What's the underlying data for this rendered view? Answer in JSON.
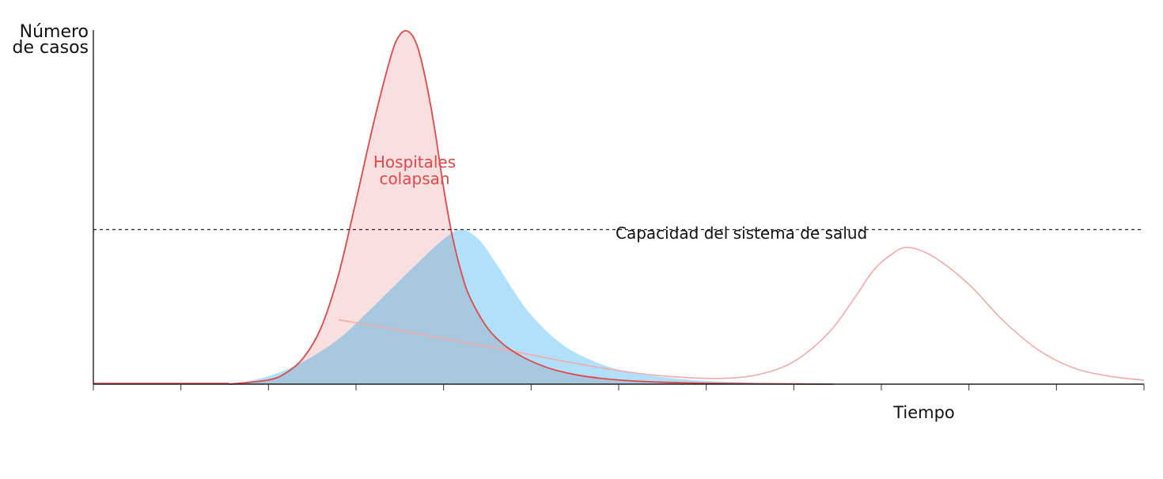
{
  "chart_data": {
    "type": "area",
    "xlabel": "Tiempo",
    "ylabel_lines": [
      "Número",
      "de casos"
    ],
    "xlim": [
      0,
      12
    ],
    "ylim": [
      0,
      11
    ],
    "x_ticks": [
      0,
      1,
      2,
      3,
      4,
      5,
      6,
      7,
      8,
      9,
      10,
      11,
      12
    ],
    "grid": false,
    "capacity": {
      "label": "Capacidad del sistema de salud",
      "y": 4.8
    },
    "annotation": {
      "lines": [
        "Hospitales",
        "colapsan"
      ]
    },
    "series": [
      {
        "key": "unmitigated",
        "color": "#e04848",
        "fill": "#f9dfe0",
        "x": [
          1.55,
          2.0,
          2.2,
          2.4,
          2.6,
          2.8,
          3.0,
          3.2,
          3.4,
          3.5,
          3.6,
          3.7,
          3.8,
          3.9,
          4.0,
          4.1,
          4.2,
          4.3,
          4.5,
          4.7,
          4.9,
          5.1,
          5.3,
          5.6,
          6.0,
          6.5,
          7.0,
          7.5,
          8.45
        ],
        "y": [
          0.0,
          0.13,
          0.35,
          0.82,
          1.75,
          3.4,
          5.7,
          8.1,
          10.2,
          10.85,
          10.95,
          10.5,
          9.4,
          7.9,
          6.1,
          4.6,
          3.5,
          2.7,
          1.75,
          1.2,
          0.85,
          0.6,
          0.42,
          0.25,
          0.13,
          0.06,
          0.03,
          0.015,
          0.0
        ]
      },
      {
        "key": "flattened",
        "color": "#a9def7",
        "fill": "#b1e1fa",
        "x": [
          1.6,
          2.0,
          2.4,
          2.8,
          3.1,
          3.4,
          3.7,
          4.0,
          4.2,
          4.4,
          4.6,
          4.8,
          5.0,
          5.3,
          5.6,
          6.0,
          6.5,
          7.0,
          7.5,
          8.0,
          8.45
        ],
        "y": [
          0.0,
          0.25,
          0.7,
          1.4,
          2.15,
          2.95,
          3.75,
          4.5,
          4.8,
          4.5,
          3.75,
          2.9,
          2.15,
          1.35,
          0.85,
          0.45,
          0.22,
          0.1,
          0.05,
          0.02,
          0.0
        ]
      },
      {
        "key": "later_peak",
        "color": "#f2aaaa",
        "x": [
          2.8,
          3.2,
          3.6,
          4.0,
          4.4,
          4.8,
          5.2,
          5.6,
          6.0,
          6.4,
          6.8,
          7.2,
          7.6,
          8.0,
          8.4,
          8.7,
          8.9,
          9.1,
          9.3,
          9.6,
          10.0,
          10.4,
          10.8,
          11.2,
          11.6,
          12.0
        ],
        "y": [
          2.0,
          1.82,
          1.62,
          1.42,
          1.22,
          1.02,
          0.8,
          0.6,
          0.42,
          0.28,
          0.2,
          0.18,
          0.3,
          0.7,
          1.6,
          2.7,
          3.5,
          4.0,
          4.25,
          3.95,
          3.1,
          1.95,
          1.05,
          0.5,
          0.25,
          0.12
        ]
      }
    ]
  }
}
